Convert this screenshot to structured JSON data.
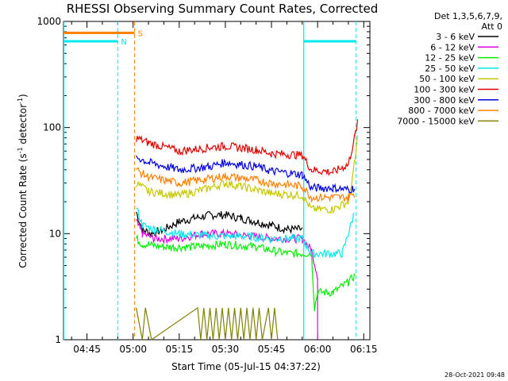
{
  "chart_data": {
    "type": "line",
    "title": "RHESSI Observing Summary Count Rates, Corrected",
    "xlabel": "Start Time (05-Jul-15 04:37:22)",
    "ylabel": "Corrected Count Rate (s",
    "ylabel_sup": "-1",
    "ylabel_rest": " detector",
    "ylabel_sup2": "-1",
    "ylabel_close": ")",
    "yscale": "log",
    "ylim": [
      1,
      1000
    ],
    "xlim": [
      "04:37:22",
      "06:17:00"
    ],
    "x_ticks": [
      "04:45",
      "05:00",
      "05:15",
      "05:30",
      "05:45",
      "06:00",
      "06:15"
    ],
    "y_ticks": [
      "1",
      "10",
      "100",
      "1000"
    ],
    "legend_header": [
      "Det 1,3,5,6,7,9,",
      "Att 0"
    ],
    "legend_position": "right",
    "series": [
      {
        "name": "3 - 6 keV",
        "color": "#000000",
        "points": [
          [
            "05:01",
            16
          ],
          [
            "05:03",
            11
          ],
          [
            "05:06",
            10
          ],
          [
            "05:10",
            11
          ],
          [
            "05:15",
            13
          ],
          [
            "05:20",
            14
          ],
          [
            "05:25",
            15
          ],
          [
            "05:30",
            15
          ],
          [
            "05:35",
            14
          ],
          [
            "05:40",
            13
          ],
          [
            "05:45",
            12
          ],
          [
            "05:50",
            11
          ],
          [
            "05:55",
            11
          ]
        ]
      },
      {
        "name": "6 - 12 keV",
        "color": "#e000e0",
        "points": [
          [
            "05:01",
            13
          ],
          [
            "05:03",
            10
          ],
          [
            "05:07",
            9
          ],
          [
            "05:15",
            9
          ],
          [
            "05:22",
            10
          ],
          [
            "05:30",
            10
          ],
          [
            "05:38",
            9.5
          ],
          [
            "05:45",
            9
          ],
          [
            "05:55",
            9
          ],
          [
            "05:58",
            7
          ],
          [
            "06:00",
            4
          ],
          [
            "06:00",
            1
          ]
        ]
      },
      {
        "name": "12 - 25 keV",
        "color": "#00ee00",
        "points": [
          [
            "05:01",
            9
          ],
          [
            "05:03",
            8
          ],
          [
            "05:10",
            7.5
          ],
          [
            "05:20",
            7.5
          ],
          [
            "05:30",
            8
          ],
          [
            "05:40",
            7.5
          ],
          [
            "05:50",
            6.5
          ],
          [
            "05:58",
            6.5
          ],
          [
            "05:59",
            2
          ],
          [
            "06:00",
            2.8
          ],
          [
            "06:05",
            2.8
          ],
          [
            "06:10",
            3.5
          ],
          [
            "06:12",
            4
          ]
        ]
      },
      {
        "name": "25 - 50 keV",
        "color": "#00e8e8",
        "points": [
          [
            "05:01",
            18
          ],
          [
            "05:03",
            12
          ],
          [
            "05:07",
            11
          ],
          [
            "05:15",
            10
          ],
          [
            "05:25",
            9.5
          ],
          [
            "05:35",
            9.5
          ],
          [
            "05:45",
            9
          ],
          [
            "05:55",
            9
          ],
          [
            "05:58",
            6.5
          ],
          [
            "06:08",
            6.5
          ],
          [
            "06:10",
            10
          ],
          [
            "06:12",
            16
          ]
        ]
      },
      {
        "name": "50 - 100 keV",
        "color": "#c8c800",
        "points": [
          [
            "05:01",
            30
          ],
          [
            "05:05",
            25
          ],
          [
            "05:15",
            23
          ],
          [
            "05:25",
            27
          ],
          [
            "05:30",
            30
          ],
          [
            "05:35",
            28
          ],
          [
            "05:45",
            24
          ],
          [
            "05:55",
            23
          ],
          [
            "05:58",
            17
          ],
          [
            "06:05",
            17
          ],
          [
            "06:10",
            20
          ],
          [
            "06:12",
            45
          ],
          [
            "06:13",
            80
          ]
        ]
      },
      {
        "name": "100 - 300 keV",
        "color": "#e00000",
        "points": [
          [
            "05:01",
            80
          ],
          [
            "05:05",
            72
          ],
          [
            "05:15",
            60
          ],
          [
            "05:25",
            65
          ],
          [
            "05:30",
            67
          ],
          [
            "05:40",
            62
          ],
          [
            "05:45",
            57
          ],
          [
            "05:55",
            55
          ],
          [
            "05:58",
            40
          ],
          [
            "06:05",
            38
          ],
          [
            "06:10",
            45
          ],
          [
            "06:12",
            80
          ],
          [
            "06:13",
            110
          ]
        ]
      },
      {
        "name": "300 - 800 keV",
        "color": "#0000e0",
        "points": [
          [
            "05:01",
            53
          ],
          [
            "05:05",
            47
          ],
          [
            "05:15",
            40
          ],
          [
            "05:25",
            43
          ],
          [
            "05:30",
            47
          ],
          [
            "05:40",
            43
          ],
          [
            "05:45",
            39
          ],
          [
            "05:55",
            36
          ],
          [
            "05:58",
            27
          ],
          [
            "06:05",
            27
          ],
          [
            "06:10",
            26
          ],
          [
            "06:12",
            27
          ]
        ]
      },
      {
        "name": "800 - 7000 keV",
        "color": "#ff8000",
        "points": [
          [
            "05:01",
            40
          ],
          [
            "05:05",
            34
          ],
          [
            "05:15",
            30
          ],
          [
            "05:25",
            33
          ],
          [
            "05:30",
            35
          ],
          [
            "05:40",
            32
          ],
          [
            "05:45",
            30
          ],
          [
            "05:55",
            28
          ],
          [
            "05:58",
            22
          ],
          [
            "06:05",
            22
          ],
          [
            "06:10",
            22
          ],
          [
            "06:12",
            24
          ]
        ]
      },
      {
        "name": "7000 - 15000 keV",
        "color": "#808000",
        "points": [
          [
            "05:01",
            2
          ],
          [
            "05:03",
            1
          ],
          [
            "05:04",
            2
          ],
          [
            "05:06",
            1
          ],
          [
            "05:21",
            2
          ],
          [
            "05:22",
            1
          ],
          [
            "05:23",
            2
          ],
          [
            "05:24",
            1
          ],
          [
            "05:25",
            2
          ],
          [
            "05:26",
            1
          ],
          [
            "05:27",
            2
          ],
          [
            "05:28",
            1
          ],
          [
            "05:29",
            2
          ],
          [
            "05:30",
            1
          ],
          [
            "05:31",
            2
          ],
          [
            "05:32",
            1
          ],
          [
            "05:33",
            2
          ],
          [
            "05:34",
            1
          ],
          [
            "05:35",
            2
          ],
          [
            "05:36",
            1
          ],
          [
            "05:37",
            2
          ],
          [
            "05:38",
            1
          ],
          [
            "05:39",
            2
          ],
          [
            "05:40",
            1
          ],
          [
            "05:41",
            2
          ],
          [
            "05:42",
            1
          ],
          [
            "05:44",
            2
          ],
          [
            "05:45",
            1
          ],
          [
            "05:46",
            2
          ],
          [
            "05:47",
            1
          ]
        ]
      }
    ],
    "flags": [
      {
        "label": "S",
        "color": "#ff8000",
        "y": 780,
        "x_start": "04:37:22",
        "x_end": "05:00:30",
        "vline_x": "05:00:30"
      },
      {
        "label": "N",
        "color": "#00e8e8",
        "y": 650,
        "x_start": "04:37:22",
        "x_end": "04:55:00",
        "vline_x": "04:55:00"
      },
      {
        "label": "",
        "color": "#00e8e8",
        "y": 650,
        "x_start": "05:55:30",
        "x_end": "06:12:30",
        "vline_x": "06:12:30"
      }
    ],
    "solid_vlines": [
      {
        "x": "04:37:30",
        "color": "#00e8e8"
      },
      {
        "x": "05:55:30",
        "color": "#00e8e8"
      }
    ],
    "timestamp": "28-Oct-2021 09:48"
  }
}
